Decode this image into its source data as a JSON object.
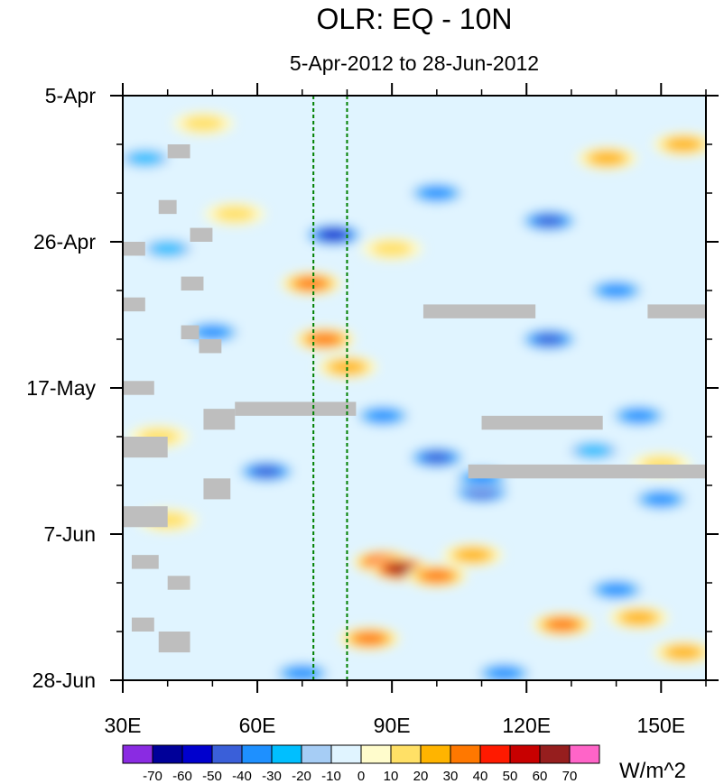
{
  "chart_data": {
    "type": "heatmap",
    "title": "OLR: EQ - 10N",
    "subtitle": "5-Apr-2012 to 28-Jun-2012",
    "xlabel": "",
    "ylabel": "",
    "x_range": [
      30,
      160
    ],
    "x_ticks": [
      30,
      60,
      90,
      120,
      150
    ],
    "x_tick_labels": [
      "30E",
      "60E",
      "90E",
      "120E",
      "150E"
    ],
    "y_range": [
      "2012-04-05",
      "2012-06-28"
    ],
    "y_ticks": [
      "2012-04-05",
      "2012-04-26",
      "2012-05-17",
      "2012-06-07",
      "2012-06-28"
    ],
    "y_tick_labels": [
      "5-Apr",
      "26-Apr",
      "17-May",
      "7-Jun",
      "28-Jun"
    ],
    "reference_longitudes": [
      72.5,
      80
    ],
    "colorbar": {
      "units": "W/m^2",
      "levels": [
        -70,
        -60,
        -50,
        -40,
        -30,
        -20,
        -10,
        0,
        10,
        20,
        30,
        40,
        50,
        60,
        70
      ],
      "colors": [
        "#8a2be2",
        "#000099",
        "#0000cd",
        "#3a5fd9",
        "#1e90ff",
        "#00bfff",
        "#a6cdf5",
        "#e0f4ff",
        "#fffccc",
        "#ffe066",
        "#ffb400",
        "#ff7800",
        "#ff1a00",
        "#c80000",
        "#961e1e",
        "#ff64c8"
      ]
    },
    "missing_color": "#bebebe",
    "anomaly_features": [
      {
        "lon": 75,
        "date": "2012-05-10",
        "value": 45
      },
      {
        "lon": 72,
        "date": "2012-05-02",
        "value": 40
      },
      {
        "lon": 80,
        "date": "2012-05-14",
        "value": 38
      },
      {
        "lon": 88,
        "date": "2012-06-11",
        "value": 55
      },
      {
        "lon": 92,
        "date": "2012-06-12",
        "value": 70
      },
      {
        "lon": 100,
        "date": "2012-06-13",
        "value": 45
      },
      {
        "lon": 85,
        "date": "2012-06-22",
        "value": 45
      },
      {
        "lon": 128,
        "date": "2012-06-20",
        "value": 40
      },
      {
        "lon": 145,
        "date": "2012-06-19",
        "value": 38
      },
      {
        "lon": 108,
        "date": "2012-06-10",
        "value": 30
      },
      {
        "lon": 155,
        "date": "2012-04-12",
        "value": 32
      },
      {
        "lon": 138,
        "date": "2012-04-14",
        "value": 38
      },
      {
        "lon": 48,
        "date": "2012-04-09",
        "value": 22
      },
      {
        "lon": 55,
        "date": "2012-04-22",
        "value": 26
      },
      {
        "lon": 90,
        "date": "2012-04-27",
        "value": 22
      },
      {
        "lon": 38,
        "date": "2012-05-24",
        "value": 22
      },
      {
        "lon": 40,
        "date": "2012-06-05",
        "value": 28
      },
      {
        "lon": 150,
        "date": "2012-05-28",
        "value": 22
      },
      {
        "lon": 155,
        "date": "2012-06-24",
        "value": 30
      },
      {
        "lon": 77,
        "date": "2012-04-25",
        "value": -65
      },
      {
        "lon": 100,
        "date": "2012-05-27",
        "value": -55
      },
      {
        "lon": 88,
        "date": "2012-05-21",
        "value": -45
      },
      {
        "lon": 62,
        "date": "2012-05-29",
        "value": -50
      },
      {
        "lon": 110,
        "date": "2012-06-01",
        "value": -50
      },
      {
        "lon": 125,
        "date": "2012-05-10",
        "value": -50
      },
      {
        "lon": 140,
        "date": "2012-05-03",
        "value": -45
      },
      {
        "lon": 150,
        "date": "2012-06-02",
        "value": -45
      },
      {
        "lon": 125,
        "date": "2012-04-23",
        "value": -50
      },
      {
        "lon": 100,
        "date": "2012-04-19",
        "value": -45
      },
      {
        "lon": 50,
        "date": "2012-05-09",
        "value": -40
      },
      {
        "lon": 115,
        "date": "2012-06-27",
        "value": -45
      },
      {
        "lon": 70,
        "date": "2012-06-27",
        "value": -40
      },
      {
        "lon": 140,
        "date": "2012-06-15",
        "value": -45
      },
      {
        "lon": 40,
        "date": "2012-04-27",
        "value": -35
      },
      {
        "lon": 145,
        "date": "2012-05-21",
        "value": -40
      },
      {
        "lon": 35,
        "date": "2012-04-14",
        "value": -30
      },
      {
        "lon": 110,
        "date": "2012-05-30",
        "value": -40
      },
      {
        "lon": 135,
        "date": "2012-05-26",
        "value": -35
      }
    ],
    "missing_regions": [
      {
        "lon": [
          97,
          122
        ],
        "date": [
          "2012-05-05",
          "2012-05-07"
        ]
      },
      {
        "lon": [
          147,
          160
        ],
        "date": [
          "2012-05-05",
          "2012-05-07"
        ]
      },
      {
        "lon": [
          55,
          82
        ],
        "date": [
          "2012-05-19",
          "2012-05-21"
        ]
      },
      {
        "lon": [
          110,
          137
        ],
        "date": [
          "2012-05-21",
          "2012-05-23"
        ]
      },
      {
        "lon": [
          107,
          160
        ],
        "date": [
          "2012-05-28",
          "2012-05-30"
        ]
      },
      {
        "lon": [
          48,
          54
        ],
        "date": [
          "2012-05-30",
          "2012-06-02"
        ]
      },
      {
        "lon": [
          30,
          35
        ],
        "date": [
          "2012-04-26",
          "2012-04-28"
        ]
      },
      {
        "lon": [
          30,
          35
        ],
        "date": [
          "2012-05-04",
          "2012-05-06"
        ]
      },
      {
        "lon": [
          30,
          37
        ],
        "date": [
          "2012-05-16",
          "2012-05-18"
        ]
      },
      {
        "lon": [
          30,
          40
        ],
        "date": [
          "2012-05-24",
          "2012-05-27"
        ]
      },
      {
        "lon": [
          30,
          40
        ],
        "date": [
          "2012-06-03",
          "2012-06-06"
        ]
      },
      {
        "lon": [
          32,
          38
        ],
        "date": [
          "2012-06-10",
          "2012-06-12"
        ]
      },
      {
        "lon": [
          32,
          37
        ],
        "date": [
          "2012-06-19",
          "2012-06-21"
        ]
      },
      {
        "lon": [
          38,
          45
        ],
        "date": [
          "2012-06-21",
          "2012-06-24"
        ]
      },
      {
        "lon": [
          40,
          45
        ],
        "date": [
          "2012-04-12",
          "2012-04-14"
        ]
      },
      {
        "lon": [
          38,
          42
        ],
        "date": [
          "2012-04-20",
          "2012-04-22"
        ]
      },
      {
        "lon": [
          45,
          50
        ],
        "date": [
          "2012-04-24",
          "2012-04-26"
        ]
      },
      {
        "lon": [
          43,
          48
        ],
        "date": [
          "2012-05-01",
          "2012-05-03"
        ]
      },
      {
        "lon": [
          43,
          47
        ],
        "date": [
          "2012-05-08",
          "2012-05-10"
        ]
      },
      {
        "lon": [
          47,
          52
        ],
        "date": [
          "2012-05-10",
          "2012-05-12"
        ]
      },
      {
        "lon": [
          48,
          55
        ],
        "date": [
          "2012-05-20",
          "2012-05-23"
        ]
      },
      {
        "lon": [
          40,
          45
        ],
        "date": [
          "2012-06-13",
          "2012-06-15"
        ]
      }
    ]
  }
}
